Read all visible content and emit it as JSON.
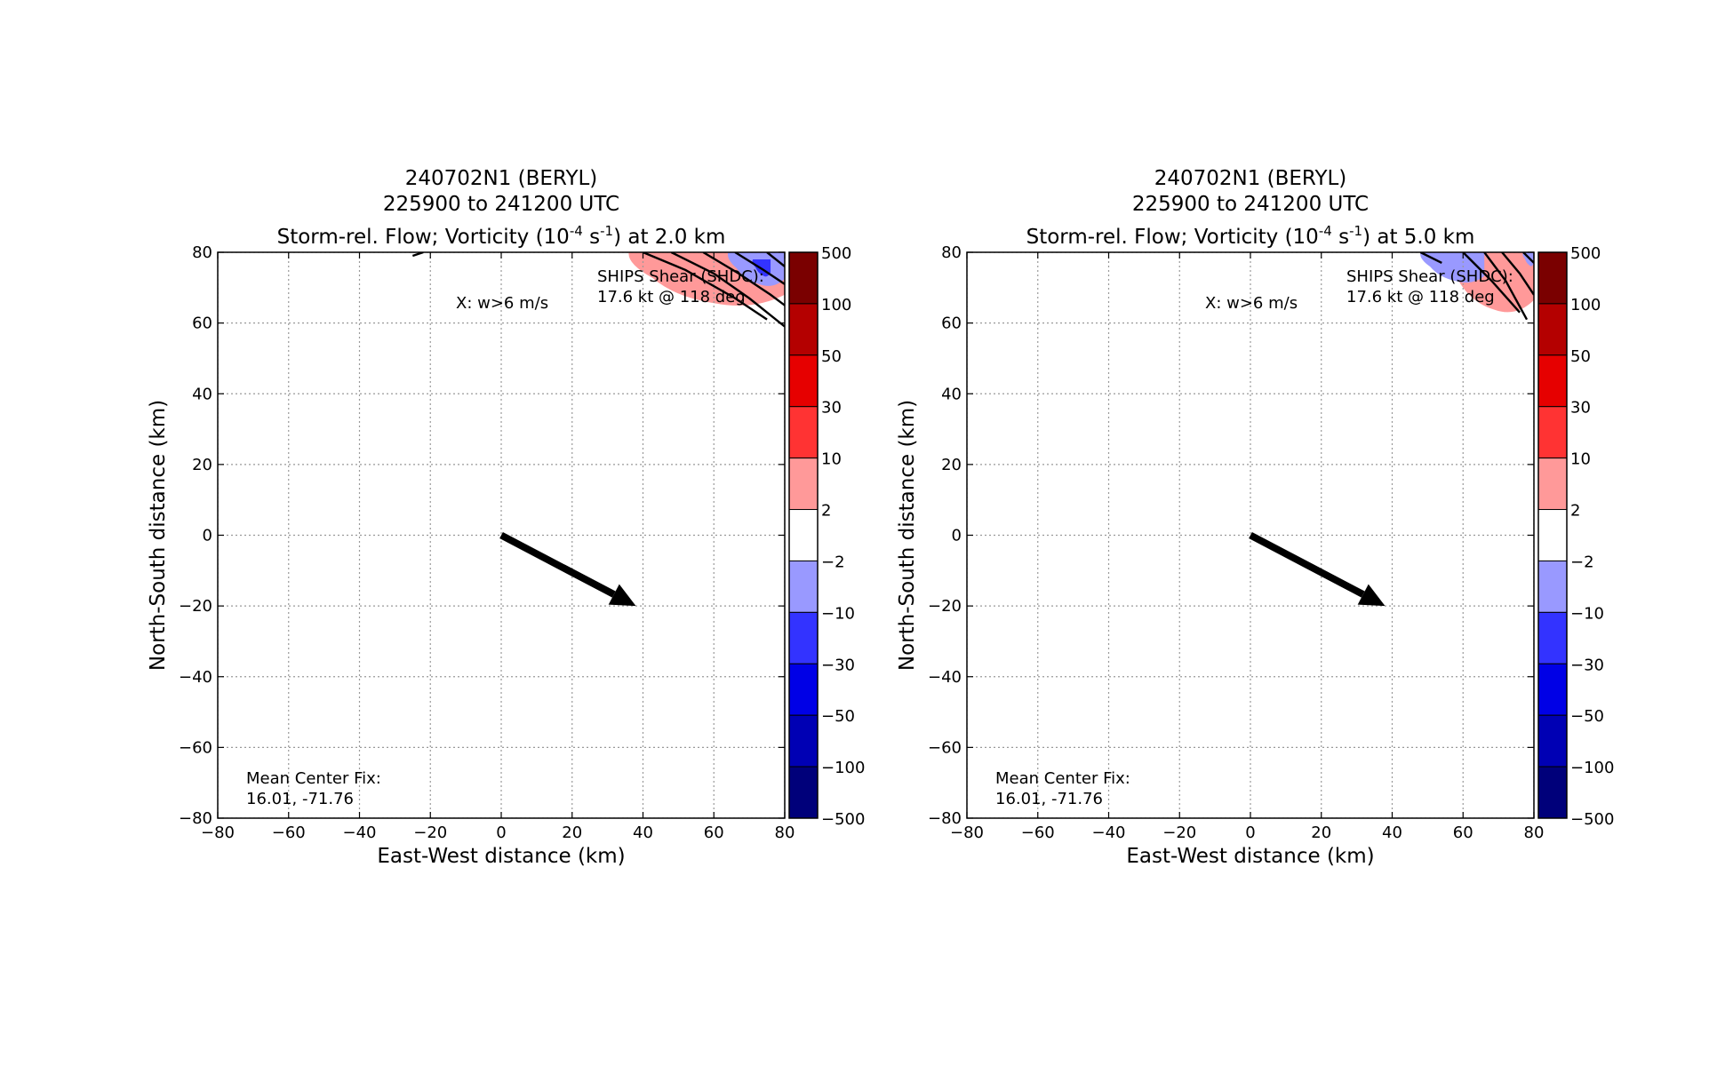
{
  "chart_data": [
    {
      "type": "contour",
      "title_lines": [
        "240702N1 (BERYL)",
        "225900 to 241200 UTC"
      ],
      "title_line3": {
        "pre": "Storm-rel. Flow; Vorticity (10",
        "exp1": "-4",
        "mid": " s",
        "exp2": "-1",
        "post": ") at 2.0 km"
      },
      "xlabel": "East-West distance (km)",
      "ylabel": "North-South distance (km)",
      "xlim": [
        -80,
        80
      ],
      "ylim": [
        -80,
        80
      ],
      "xticks": [
        -80,
        -60,
        -40,
        -20,
        0,
        20,
        40,
        60,
        80
      ],
      "yticks": [
        -80,
        -60,
        -40,
        -20,
        0,
        20,
        40,
        60,
        80
      ],
      "xtick_labels": [
        "−80",
        "−60",
        "−40",
        "−20",
        "0",
        "20",
        "40",
        "60",
        "80"
      ],
      "ytick_labels": [
        "−80",
        "−60",
        "−40",
        "−20",
        "0",
        "20",
        "40",
        "60",
        "80"
      ],
      "grid": true,
      "annotations": {
        "ships_line1": "SHIPS Shear (SHDC):",
        "ships_line2": "17.6 kt @ 118 deg",
        "w_marker": "X: w>6 m/s",
        "center_line1": "Mean Center Fix:",
        "center_line2": "16.01, -71.76"
      },
      "shear_vector": {
        "start": [
          0,
          0
        ],
        "end": [
          38,
          -20
        ]
      },
      "colorbar": {
        "levels": [
          "500",
          "100",
          "50",
          "30",
          "10",
          "2",
          "−2",
          "−10",
          "−30",
          "−50",
          "−100",
          "−500"
        ],
        "colors": [
          "#7a0000",
          "#b40000",
          "#e60000",
          "#ff3333",
          "#ff9999",
          "#ffffff",
          "#9999ff",
          "#3333ff",
          "#0000e6",
          "#0000b4",
          "#00007a"
        ]
      },
      "vorticity_patches": [
        {
          "sign": "positive",
          "color": "#ff9999",
          "region_x": [
            36,
            80
          ],
          "region_y": [
            64,
            80
          ]
        },
        {
          "sign": "negative",
          "color": "#9999ff",
          "region_x": [
            64,
            80
          ],
          "region_y": [
            70,
            80
          ]
        },
        {
          "sign": "negative",
          "color": "#3333ff",
          "region_x": [
            71,
            76
          ],
          "region_y": [
            73,
            78
          ]
        }
      ],
      "streamlines": [
        [
          [
            -25,
            79
          ],
          [
            -22,
            80
          ]
        ],
        [
          [
            40,
            80
          ],
          [
            52,
            75
          ],
          [
            66,
            67
          ],
          [
            75,
            61
          ]
        ],
        [
          [
            48,
            80
          ],
          [
            60,
            74
          ],
          [
            70,
            67
          ],
          [
            80,
            59
          ]
        ],
        [
          [
            57,
            80
          ],
          [
            67,
            74
          ],
          [
            76,
            68
          ],
          [
            80,
            65
          ]
        ],
        [
          [
            66,
            80
          ],
          [
            74,
            75
          ],
          [
            80,
            71
          ]
        ],
        [
          [
            75,
            80
          ],
          [
            80,
            76
          ]
        ]
      ]
    },
    {
      "type": "contour",
      "title_lines": [
        "240702N1 (BERYL)",
        "225900 to 241200 UTC"
      ],
      "title_line3": {
        "pre": "Storm-rel. Flow; Vorticity (10",
        "exp1": "-4",
        "mid": " s",
        "exp2": "-1",
        "post": ") at 5.0 km"
      },
      "xlabel": "East-West distance (km)",
      "ylabel": "North-South distance (km)",
      "xlim": [
        -80,
        80
      ],
      "ylim": [
        -80,
        80
      ],
      "xticks": [
        -80,
        -60,
        -40,
        -20,
        0,
        20,
        40,
        60,
        80
      ],
      "yticks": [
        -80,
        -60,
        -40,
        -20,
        0,
        20,
        40,
        60,
        80
      ],
      "xtick_labels": [
        "−80",
        "−60",
        "−40",
        "−20",
        "0",
        "20",
        "40",
        "60",
        "80"
      ],
      "ytick_labels": [
        "−80",
        "−60",
        "−40",
        "−20",
        "0",
        "20",
        "40",
        "60",
        "80"
      ],
      "grid": true,
      "annotations": {
        "ships_line1": "SHIPS Shear (SHDC):",
        "ships_line2": "17.6 kt @ 118 deg",
        "w_marker": "X: w>6 m/s",
        "center_line1": "Mean Center Fix:",
        "center_line2": "16.01, -71.76"
      },
      "shear_vector": {
        "start": [
          0,
          0
        ],
        "end": [
          38,
          -20
        ]
      },
      "colorbar": {
        "levels": [
          "500",
          "100",
          "50",
          "30",
          "10",
          "2",
          "−2",
          "−10",
          "−30",
          "−50",
          "−100",
          "−500"
        ],
        "colors": [
          "#7a0000",
          "#b40000",
          "#e60000",
          "#ff3333",
          "#ff9999",
          "#ffffff",
          "#9999ff",
          "#3333ff",
          "#0000e6",
          "#0000b4",
          "#00007a"
        ]
      },
      "vorticity_patches": [
        {
          "sign": "positive",
          "color": "#ff9999",
          "region_x": [
            55,
            80
          ],
          "region_y": [
            62,
            80
          ]
        },
        {
          "sign": "negative",
          "color": "#9999ff",
          "region_x": [
            48,
            66
          ],
          "region_y": [
            71,
            80
          ]
        },
        {
          "sign": "negative",
          "color": "#9999ff",
          "region_x": [
            77,
            80
          ],
          "region_y": [
            76,
            80
          ]
        }
      ],
      "streamlines": [
        [
          [
            48,
            80
          ],
          [
            54,
            77
          ]
        ],
        [
          [
            60,
            80
          ],
          [
            68,
            72
          ],
          [
            76,
            63
          ]
        ],
        [
          [
            66,
            80
          ],
          [
            72,
            72
          ],
          [
            78,
            61
          ]
        ],
        [
          [
            71,
            80
          ],
          [
            76,
            74
          ],
          [
            80,
            68
          ]
        ],
        [
          [
            77,
            80
          ],
          [
            80,
            77
          ]
        ]
      ]
    }
  ]
}
